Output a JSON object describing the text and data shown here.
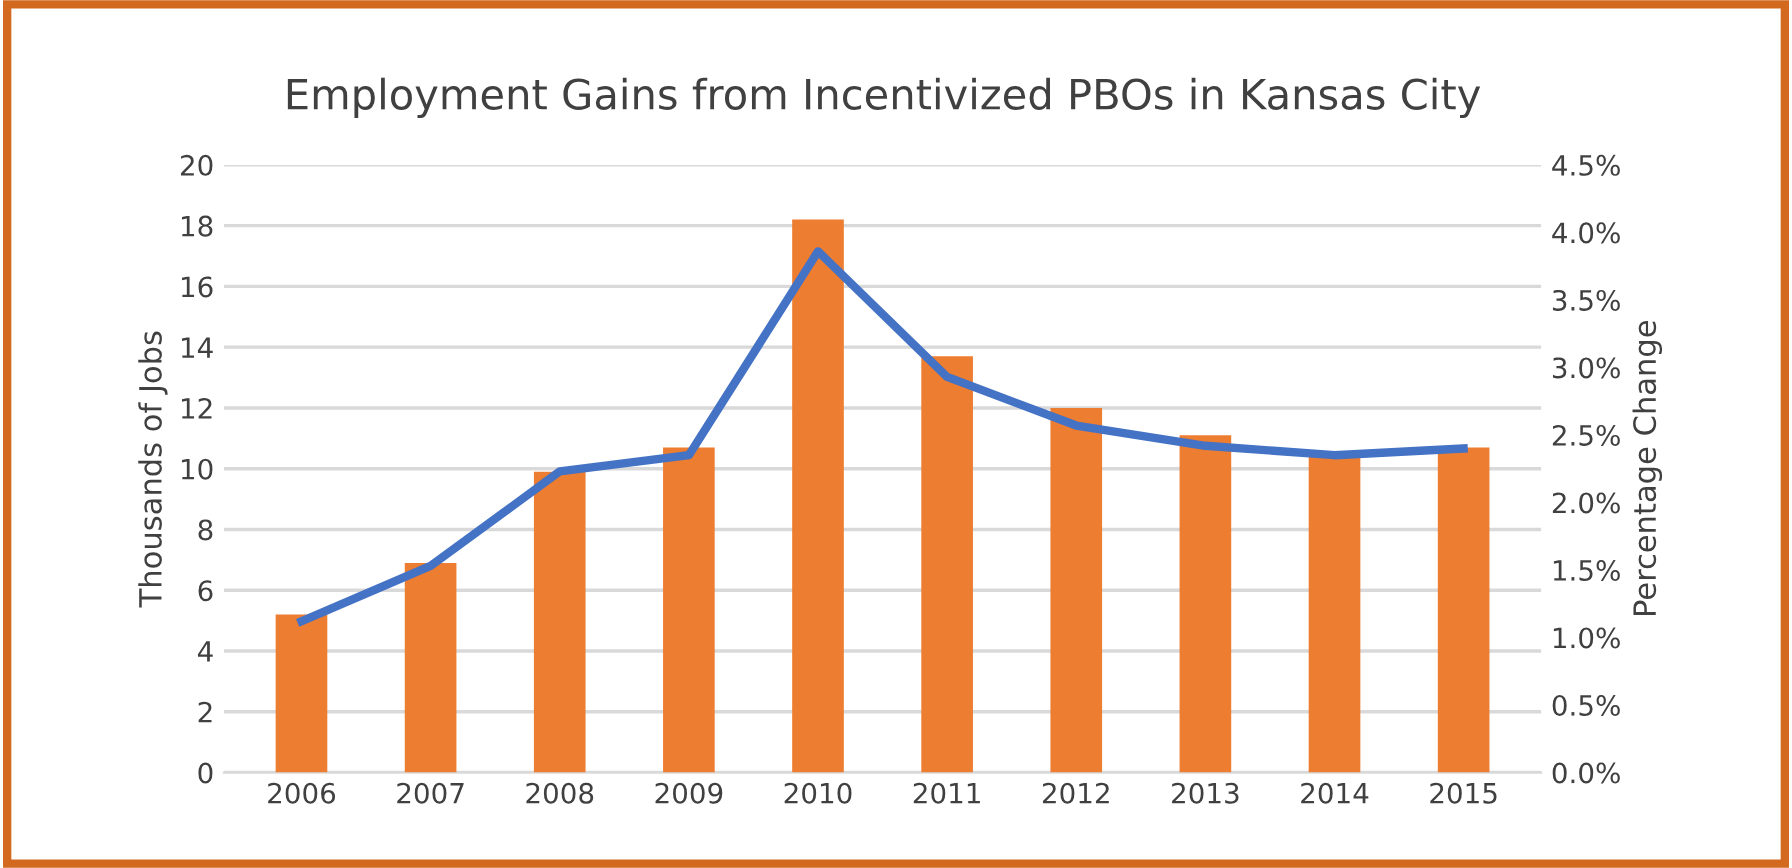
{
  "chart_data": {
    "type": "bar",
    "title": "Employment Gains from Incentivized PBOs in Kansas City",
    "categories": [
      "2006",
      "2007",
      "2008",
      "2009",
      "2010",
      "2011",
      "2012",
      "2013",
      "2014",
      "2015"
    ],
    "series": [
      {
        "color": "#ed7d31",
        "values": [
          5.2,
          6.9,
          9.9,
          10.7,
          18.2,
          13.7,
          12.0,
          11.1,
          10.5,
          10.7
        ]
      },
      {
        "type": "line",
        "axis": "y2",
        "color": "#4472c4",
        "values": [
          1.12,
          1.53,
          2.23,
          2.35,
          3.86,
          2.93,
          2.57,
          2.42,
          2.35,
          2.4
        ]
      }
    ],
    "ylabel": "Thousands of Jobs",
    "y2label": "Percentage Change",
    "ylim": [
      0,
      20
    ],
    "yticks": [
      0,
      2,
      4,
      6,
      8,
      10,
      12,
      14,
      16,
      18,
      20
    ],
    "y2lim": [
      0,
      4.5
    ],
    "y2ticks": [
      {
        "value": 0,
        "label": "0.0%"
      },
      {
        "value": 0.5,
        "label": "0.5%"
      },
      {
        "value": 1.0,
        "label": "1.0%"
      },
      {
        "value": 1.5,
        "label": "1.5%"
      },
      {
        "value": 2.0,
        "label": "2.0%"
      },
      {
        "value": 2.5,
        "label": "2.5%"
      },
      {
        "value": 3.0,
        "label": "3.0%"
      },
      {
        "value": 3.5,
        "label": "3.5%"
      },
      {
        "value": 4.0,
        "label": "4.0%"
      },
      {
        "value": 4.5,
        "label": "4.5%"
      }
    ],
    "grid": "y",
    "legend": false
  }
}
